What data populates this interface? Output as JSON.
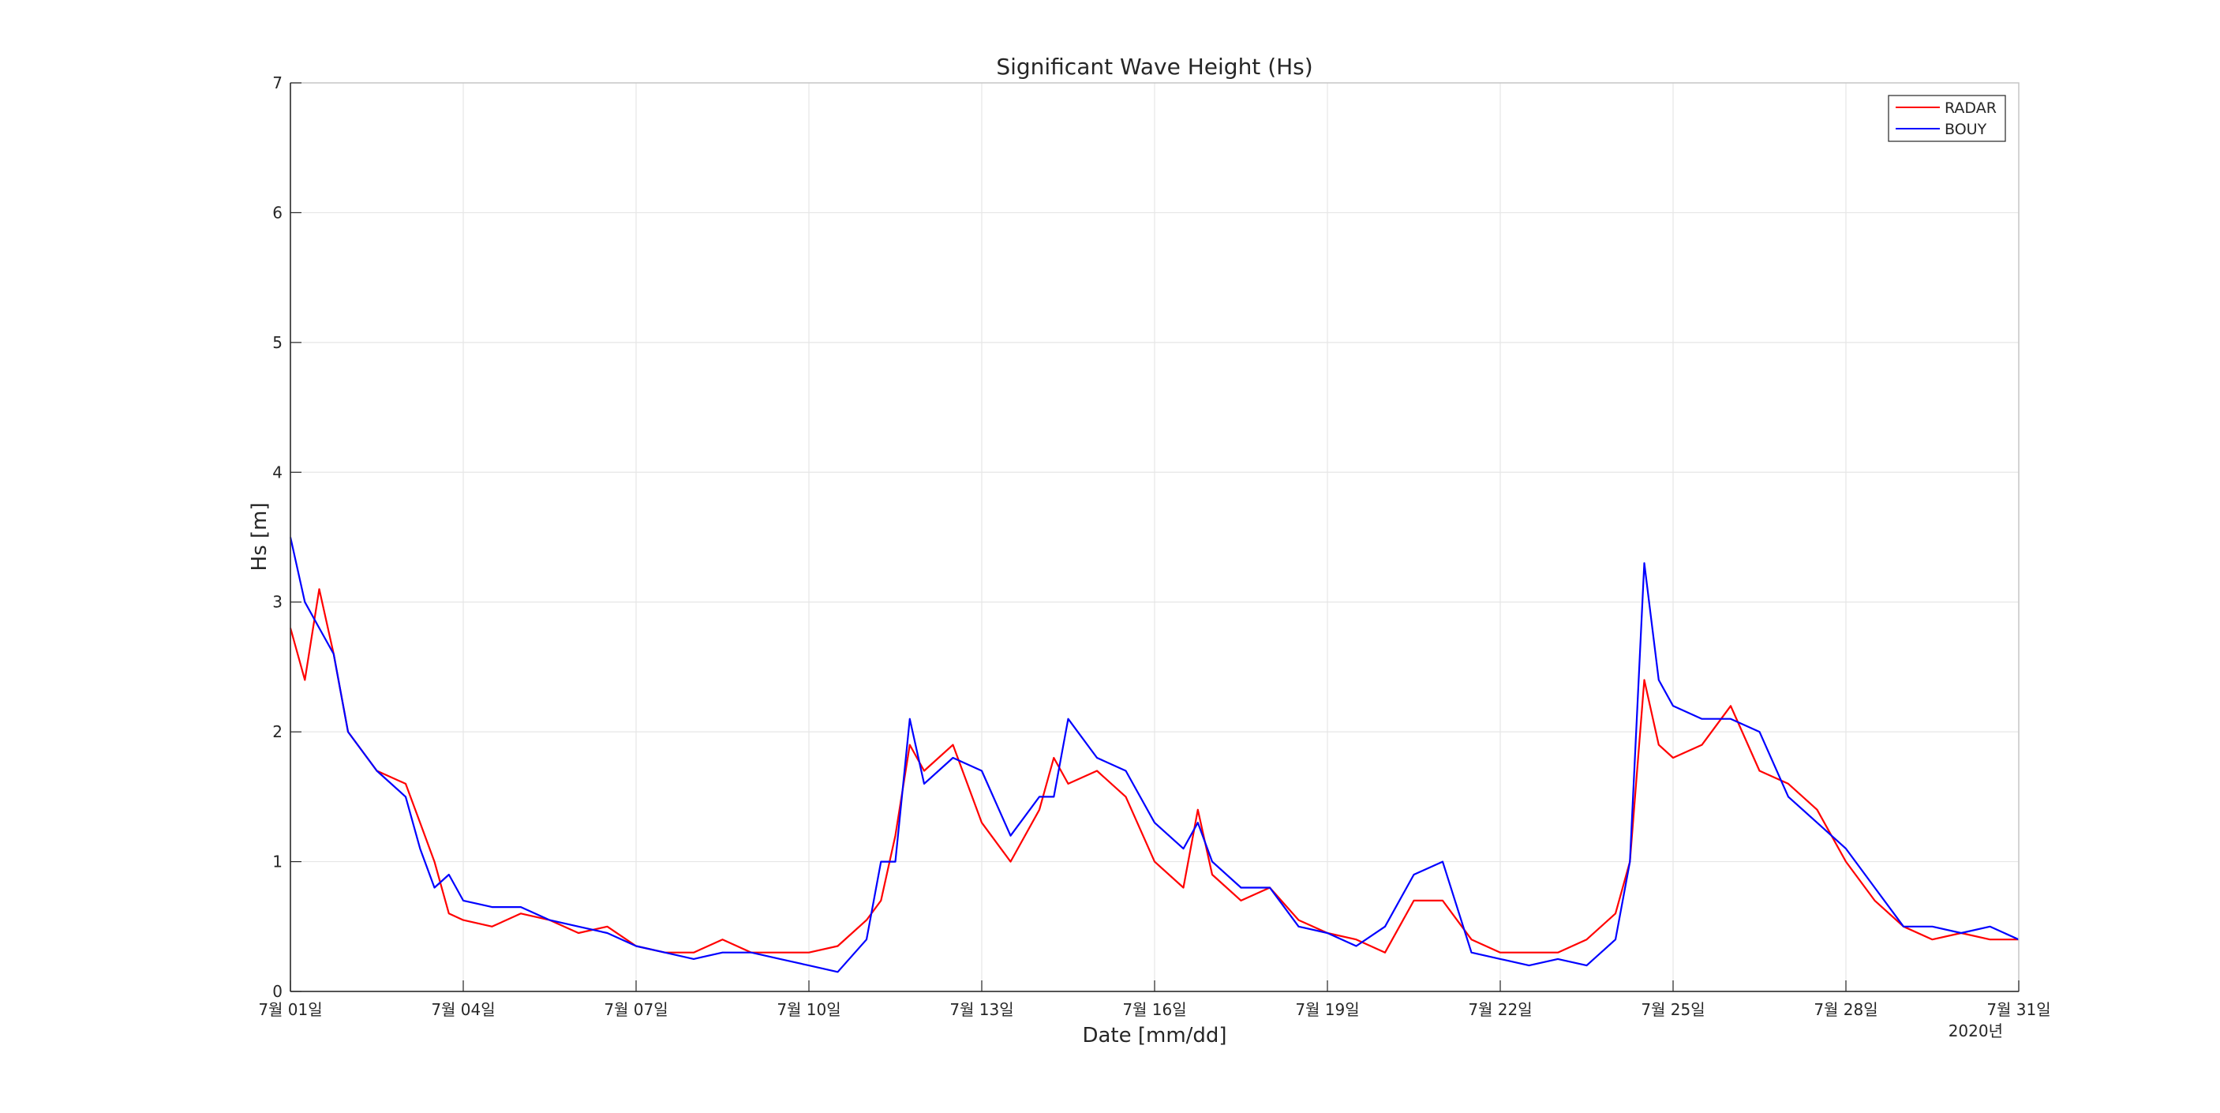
{
  "chart_data": {
    "type": "line",
    "title": "Significant Wave Height (Hs)",
    "xlabel": "Date [mm/dd]",
    "ylabel": "Hs [m]",
    "year_label": "2020년",
    "ylim": [
      0,
      7
    ],
    "y_ticks": [
      0,
      1,
      2,
      3,
      4,
      5,
      6,
      7
    ],
    "xlim": [
      "2020-07-01",
      "2020-07-31"
    ],
    "x_ticks": [
      {
        "date": "2020-07-01",
        "label": "7월 01일"
      },
      {
        "date": "2020-07-04",
        "label": "7월 04일"
      },
      {
        "date": "2020-07-07",
        "label": "7월 07일"
      },
      {
        "date": "2020-07-10",
        "label": "7월 10일"
      },
      {
        "date": "2020-07-13",
        "label": "7월 13일"
      },
      {
        "date": "2020-07-16",
        "label": "7월 16일"
      },
      {
        "date": "2020-07-19",
        "label": "7월 19일"
      },
      {
        "date": "2020-07-22",
        "label": "7월 22일"
      },
      {
        "date": "2020-07-25",
        "label": "7월 25일"
      },
      {
        "date": "2020-07-28",
        "label": "7월 28일"
      },
      {
        "date": "2020-07-31",
        "label": "7월 31일"
      }
    ],
    "grid": true,
    "legend_position": "top-right",
    "series": [
      {
        "name": "RADAR",
        "color": "#ff0000",
        "x": [
          "2020-07-01 00:00",
          "2020-07-01 06:00",
          "2020-07-01 12:00",
          "2020-07-01 18:00",
          "2020-07-02 00:00",
          "2020-07-02 12:00",
          "2020-07-03 00:00",
          "2020-07-03 06:00",
          "2020-07-03 12:00",
          "2020-07-03 18:00",
          "2020-07-04 00:00",
          "2020-07-04 12:00",
          "2020-07-05 00:00",
          "2020-07-05 12:00",
          "2020-07-06 00:00",
          "2020-07-06 12:00",
          "2020-07-07 00:00",
          "2020-07-07 12:00",
          "2020-07-08 00:00",
          "2020-07-08 12:00",
          "2020-07-09 00:00",
          "2020-07-09 12:00",
          "2020-07-10 00:00",
          "2020-07-10 12:00",
          "2020-07-11 00:00",
          "2020-07-11 06:00",
          "2020-07-11 12:00",
          "2020-07-11 18:00",
          "2020-07-12 00:00",
          "2020-07-12 12:00",
          "2020-07-13 00:00",
          "2020-07-13 12:00",
          "2020-07-14 00:00",
          "2020-07-14 06:00",
          "2020-07-14 12:00",
          "2020-07-15 00:00",
          "2020-07-15 12:00",
          "2020-07-16 00:00",
          "2020-07-16 12:00",
          "2020-07-16 18:00",
          "2020-07-17 00:00",
          "2020-07-17 12:00",
          "2020-07-18 00:00",
          "2020-07-18 12:00",
          "2020-07-19 00:00",
          "2020-07-19 12:00",
          "2020-07-20 00:00",
          "2020-07-20 12:00",
          "2020-07-21 00:00",
          "2020-07-21 12:00",
          "2020-07-22 00:00",
          "2020-07-22 12:00",
          "2020-07-23 00:00",
          "2020-07-23 12:00",
          "2020-07-24 00:00",
          "2020-07-24 06:00",
          "2020-07-24 12:00",
          "2020-07-24 18:00",
          "2020-07-25 00:00",
          "2020-07-25 12:00",
          "2020-07-26 00:00",
          "2020-07-26 12:00",
          "2020-07-27 00:00",
          "2020-07-27 12:00",
          "2020-07-28 00:00",
          "2020-07-28 12:00",
          "2020-07-29 00:00",
          "2020-07-29 12:00",
          "2020-07-30 00:00",
          "2020-07-30 12:00",
          "2020-07-31 00:00"
        ],
        "y": [
          2.8,
          2.4,
          3.1,
          2.6,
          2.0,
          1.7,
          1.6,
          1.3,
          1.0,
          0.6,
          0.55,
          0.5,
          0.6,
          0.55,
          0.45,
          0.5,
          0.35,
          0.3,
          0.3,
          0.4,
          0.3,
          0.3,
          0.3,
          0.35,
          0.55,
          0.7,
          1.2,
          1.9,
          1.7,
          1.9,
          1.3,
          1.0,
          1.4,
          1.8,
          1.6,
          1.7,
          1.5,
          1.0,
          0.8,
          1.4,
          0.9,
          0.7,
          0.8,
          0.55,
          0.45,
          0.4,
          0.3,
          0.7,
          0.7,
          0.4,
          0.3,
          0.3,
          0.3,
          0.4,
          0.6,
          1.0,
          2.4,
          1.9,
          1.8,
          1.9,
          2.2,
          1.7,
          1.6,
          1.4,
          1.0,
          0.7,
          0.5,
          0.4,
          0.45,
          0.4,
          0.4
        ]
      },
      {
        "name": "BOUY",
        "color": "#0000ff",
        "x": [
          "2020-07-01 00:00",
          "2020-07-01 06:00",
          "2020-07-01 12:00",
          "2020-07-01 18:00",
          "2020-07-02 00:00",
          "2020-07-02 12:00",
          "2020-07-03 00:00",
          "2020-07-03 06:00",
          "2020-07-03 12:00",
          "2020-07-03 18:00",
          "2020-07-04 00:00",
          "2020-07-04 12:00",
          "2020-07-05 00:00",
          "2020-07-05 12:00",
          "2020-07-06 00:00",
          "2020-07-06 12:00",
          "2020-07-07 00:00",
          "2020-07-07 12:00",
          "2020-07-08 00:00",
          "2020-07-08 12:00",
          "2020-07-09 00:00",
          "2020-07-09 12:00",
          "2020-07-10 00:00",
          "2020-07-10 12:00",
          "2020-07-11 00:00",
          "2020-07-11 06:00",
          "2020-07-11 12:00",
          "2020-07-11 18:00",
          "2020-07-12 00:00",
          "2020-07-12 12:00",
          "2020-07-13 00:00",
          "2020-07-13 12:00",
          "2020-07-14 00:00",
          "2020-07-14 06:00",
          "2020-07-14 12:00",
          "2020-07-15 00:00",
          "2020-07-15 12:00",
          "2020-07-16 00:00",
          "2020-07-16 12:00",
          "2020-07-16 18:00",
          "2020-07-17 00:00",
          "2020-07-17 12:00",
          "2020-07-18 00:00",
          "2020-07-18 12:00",
          "2020-07-19 00:00",
          "2020-07-19 12:00",
          "2020-07-20 00:00",
          "2020-07-20 12:00",
          "2020-07-21 00:00",
          "2020-07-21 12:00",
          "2020-07-22 00:00",
          "2020-07-22 12:00",
          "2020-07-23 00:00",
          "2020-07-23 12:00",
          "2020-07-24 00:00",
          "2020-07-24 06:00",
          "2020-07-24 12:00",
          "2020-07-24 18:00",
          "2020-07-25 00:00",
          "2020-07-25 12:00",
          "2020-07-26 00:00",
          "2020-07-26 12:00",
          "2020-07-27 00:00",
          "2020-07-27 12:00",
          "2020-07-28 00:00",
          "2020-07-28 12:00",
          "2020-07-29 00:00",
          "2020-07-29 12:00",
          "2020-07-30 00:00",
          "2020-07-30 12:00",
          "2020-07-31 00:00"
        ],
        "y": [
          3.5,
          3.0,
          2.8,
          2.6,
          2.0,
          1.7,
          1.5,
          1.1,
          0.8,
          0.9,
          0.7,
          0.65,
          0.65,
          0.55,
          0.5,
          0.45,
          0.35,
          0.3,
          0.25,
          0.3,
          0.3,
          0.25,
          0.2,
          0.15,
          0.4,
          1.0,
          1.0,
          2.1,
          1.6,
          1.8,
          1.7,
          1.2,
          1.5,
          1.5,
          2.1,
          1.8,
          1.7,
          1.3,
          1.1,
          1.3,
          1.0,
          0.8,
          0.8,
          0.5,
          0.45,
          0.35,
          0.5,
          0.9,
          1.0,
          0.3,
          0.25,
          0.2,
          0.25,
          0.2,
          0.4,
          1.0,
          3.3,
          2.4,
          2.2,
          2.1,
          2.1,
          2.0,
          1.5,
          1.3,
          1.1,
          0.8,
          0.5,
          0.5,
          0.45,
          0.5,
          0.4
        ]
      }
    ]
  }
}
